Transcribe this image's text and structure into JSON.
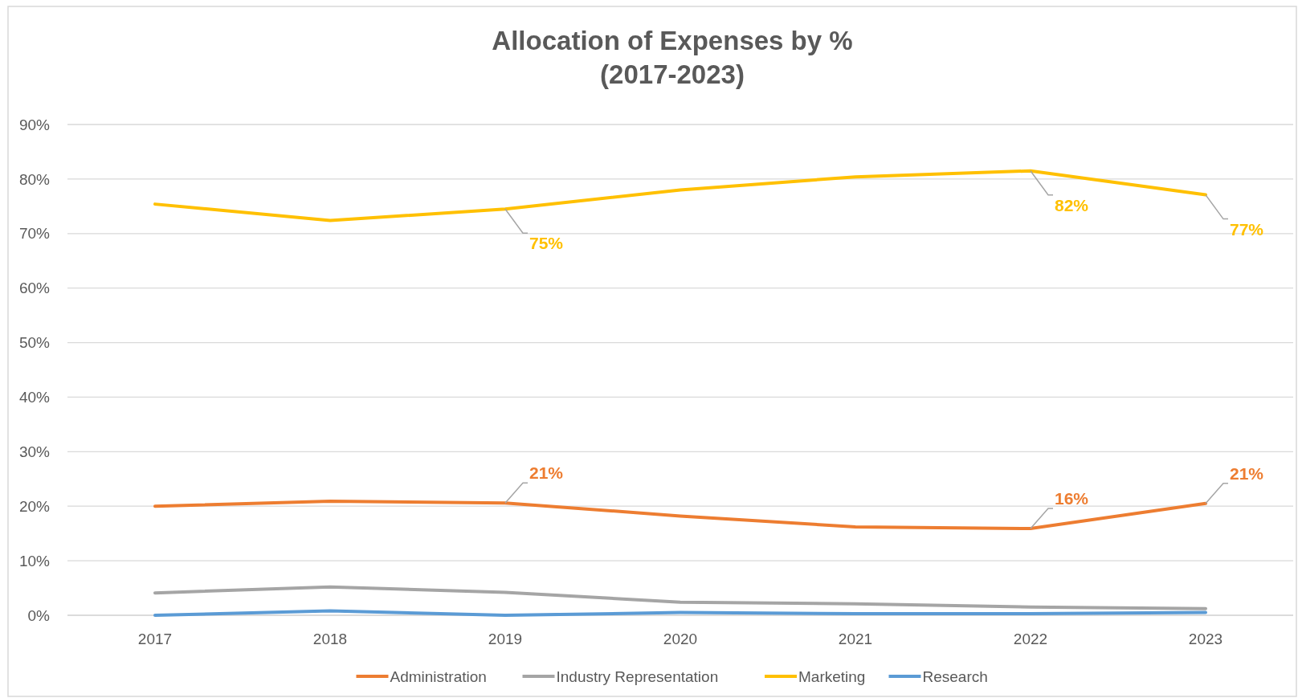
{
  "chart_data": {
    "type": "line",
    "title": "Allocation of Expenses by %\n(2017-2023)",
    "categories": [
      "2017",
      "2018",
      "2019",
      "2020",
      "2021",
      "2022",
      "2023"
    ],
    "series": [
      {
        "name": "Administration",
        "color": "#ed7d31",
        "values": [
          20.0,
          20.9,
          20.6,
          18.2,
          16.2,
          15.9,
          20.5
        ],
        "value_labels": [
          null,
          null,
          "21%",
          null,
          null,
          "16%",
          "21%"
        ]
      },
      {
        "name": "Industry Representation",
        "color": "#a5a5a5",
        "values": [
          4.1,
          5.2,
          4.2,
          2.4,
          2.1,
          1.5,
          1.2
        ]
      },
      {
        "name": "Marketing",
        "color": "#ffc000",
        "values": [
          75.4,
          72.4,
          74.5,
          78.0,
          80.4,
          81.5,
          77.1
        ],
        "value_labels": [
          null,
          null,
          "75%",
          null,
          null,
          "82%",
          "77%"
        ]
      },
      {
        "name": "Research",
        "color": "#5b9bd5",
        "values": [
          0,
          0.8,
          0,
          0.5,
          0.3,
          0.3,
          0.5
        ]
      }
    ],
    "ylim": [
      0,
      90
    ],
    "yticks": [
      {
        "value": 0,
        "label": "0%"
      },
      {
        "value": 10,
        "label": "10%"
      },
      {
        "value": 20,
        "label": "20%"
      },
      {
        "value": 30,
        "label": "30%"
      },
      {
        "value": 40,
        "label": "40%"
      },
      {
        "value": 50,
        "label": "50%"
      },
      {
        "value": 60,
        "label": "60%"
      },
      {
        "value": 70,
        "label": "70%"
      },
      {
        "value": 80,
        "label": "80%"
      },
      {
        "value": 90,
        "label": "90%"
      }
    ],
    "grid": "y",
    "legend": "bottom",
    "marker": "none",
    "line_style": "solid"
  }
}
